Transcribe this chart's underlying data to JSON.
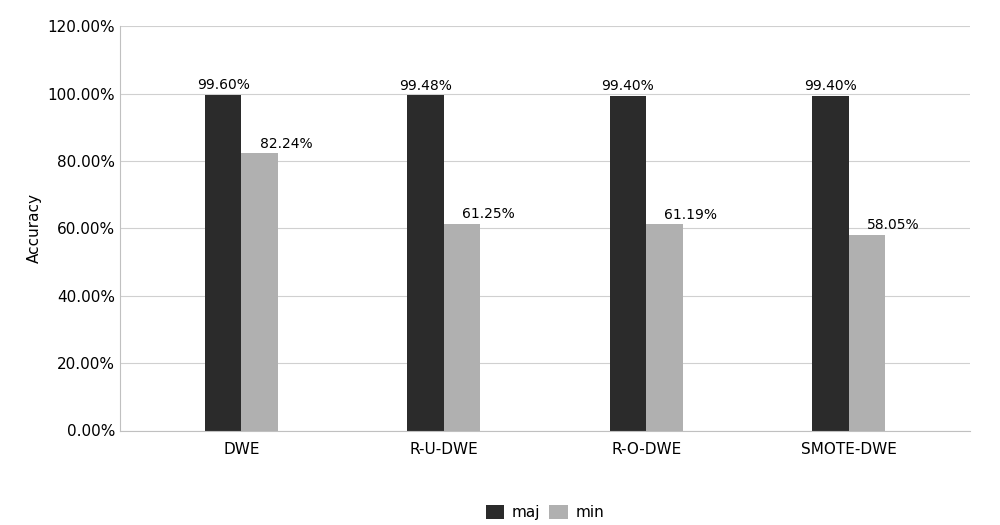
{
  "categories": [
    "DWE",
    "R-U-DWE",
    "R-O-DWE",
    "SMOTE-DWE"
  ],
  "maj_values": [
    0.996,
    0.9948,
    0.994,
    0.994
  ],
  "min_values": [
    0.8224,
    0.6125,
    0.6119,
    0.5805
  ],
  "maj_labels": [
    "99.60%",
    "99.48%",
    "99.40%",
    "99.40%"
  ],
  "min_labels": [
    "82.24%",
    "61.25%",
    "61.19%",
    "58.05%"
  ],
  "maj_color": "#2b2b2b",
  "min_color": "#b0b0b0",
  "ylabel": "Accuracy",
  "ylim": [
    0,
    1.2
  ],
  "yticks": [
    0.0,
    0.2,
    0.4,
    0.6,
    0.8,
    1.0,
    1.2
  ],
  "ytick_labels": [
    "0.00%",
    "20.00%",
    "40.00%",
    "60.00%",
    "80.00%",
    "100.00%",
    "120.00%"
  ],
  "legend_labels": [
    "maj",
    "min"
  ],
  "bar_width": 0.18,
  "background_color": "#ffffff",
  "grid_color": "#d0d0d0",
  "label_fontsize": 11,
  "tick_fontsize": 11,
  "bar_label_fontsize": 10,
  "frame_color": "#c0c0c0"
}
